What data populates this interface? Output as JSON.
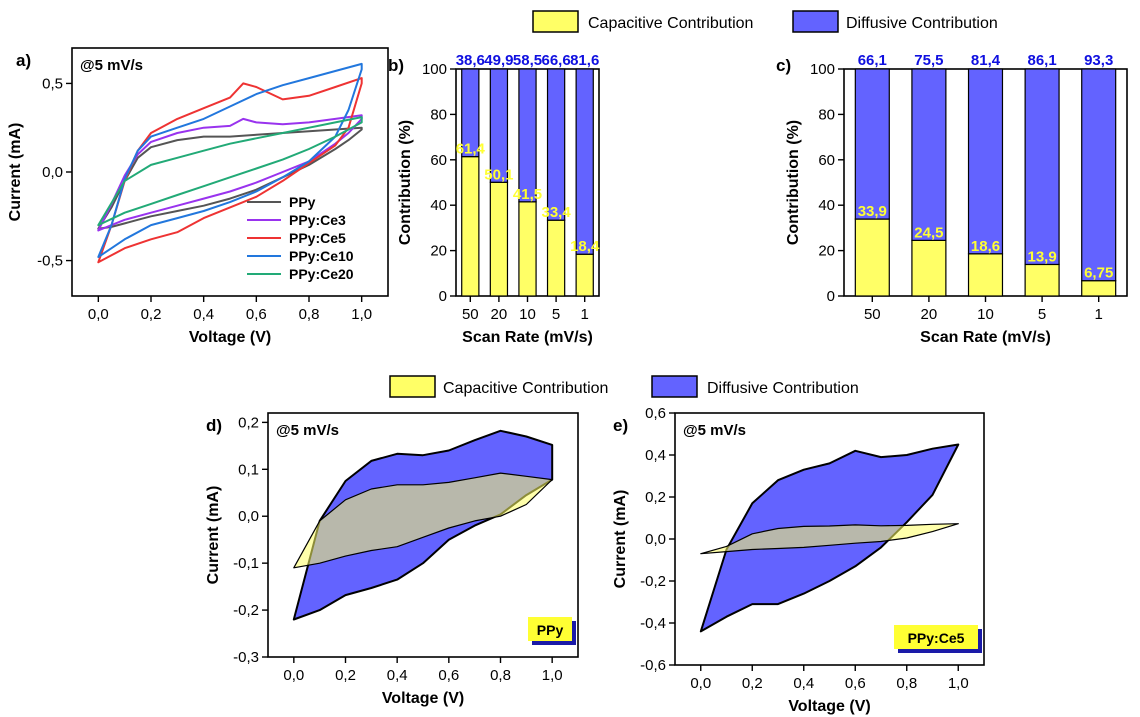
{
  "legend_entries": {
    "capacitive": "Capacitive Contribution",
    "diffusive": "Diffusive Contribution"
  },
  "colors": {
    "capacitive": "#ffff66",
    "diffusive": "#6363ff",
    "diffusive_label": "#1010e0",
    "capacitive_label": "#ffff33",
    "PPy": "#555555",
    "PPy:Ce3": "#9933ee",
    "PPy:Ce5": "#ee3333",
    "PPy:Ce10": "#2277dd",
    "PPy:Ce20": "#22aa77"
  },
  "chart_data": [
    {
      "type": "line",
      "panel": "a)",
      "annotation": "@5 mV/s",
      "xlabel": "Voltage (V)",
      "ylabel": "Current (mA)",
      "xlim": [
        -0.1,
        1.1
      ],
      "ylim": [
        -0.7,
        0.7
      ],
      "xticks": [
        "0,0",
        "0,2",
        "0,4",
        "0,6",
        "0,8",
        "1,0"
      ],
      "yticks": [
        "-0,5",
        "0,0",
        "0,5"
      ],
      "legend_position": "bottom-right",
      "series": [
        {
          "name": "PPy",
          "x": [
            0,
            0.05,
            0.1,
            0.15,
            0.2,
            0.3,
            0.4,
            0.5,
            0.6,
            0.7,
            0.8,
            0.9,
            1.0,
            1.0,
            0.95,
            0.9,
            0.8,
            0.7,
            0.6,
            0.5,
            0.4,
            0.3,
            0.2,
            0.15,
            0.1,
            0.05,
            0
          ],
          "y": [
            -0.32,
            -0.2,
            -0.05,
            0.08,
            0.14,
            0.18,
            0.2,
            0.2,
            0.21,
            0.22,
            0.23,
            0.24,
            0.25,
            0.24,
            0.18,
            0.13,
            0.04,
            -0.03,
            -0.1,
            -0.15,
            -0.19,
            -0.22,
            -0.25,
            -0.27,
            -0.29,
            -0.31,
            -0.32
          ]
        },
        {
          "name": "PPy:Ce3",
          "x": [
            0,
            0.05,
            0.1,
            0.15,
            0.2,
            0.3,
            0.4,
            0.5,
            0.55,
            0.6,
            0.7,
            0.8,
            0.9,
            1.0,
            1.0,
            0.95,
            0.9,
            0.8,
            0.7,
            0.6,
            0.5,
            0.4,
            0.3,
            0.2,
            0.1,
            0.05,
            0
          ],
          "y": [
            -0.33,
            -0.18,
            -0.02,
            0.1,
            0.17,
            0.22,
            0.25,
            0.26,
            0.3,
            0.28,
            0.27,
            0.28,
            0.3,
            0.32,
            0.3,
            0.22,
            0.16,
            0.06,
            0,
            -0.06,
            -0.11,
            -0.15,
            -0.19,
            -0.23,
            -0.27,
            -0.3,
            -0.33
          ]
        },
        {
          "name": "PPy:Ce5",
          "x": [
            0,
            0.05,
            0.1,
            0.15,
            0.2,
            0.3,
            0.4,
            0.5,
            0.55,
            0.6,
            0.7,
            0.8,
            0.9,
            1.0,
            1.0,
            0.95,
            0.9,
            0.8,
            0.7,
            0.6,
            0.5,
            0.4,
            0.3,
            0.2,
            0.1,
            0.05,
            0
          ],
          "y": [
            -0.51,
            -0.3,
            -0.05,
            0.12,
            0.22,
            0.3,
            0.36,
            0.42,
            0.5,
            0.48,
            0.41,
            0.43,
            0.48,
            0.53,
            0.5,
            0.25,
            0.15,
            0.05,
            -0.05,
            -0.14,
            -0.2,
            -0.26,
            -0.34,
            -0.38,
            -0.43,
            -0.47,
            -0.51
          ]
        },
        {
          "name": "PPy:Ce10",
          "x": [
            0,
            0.05,
            0.1,
            0.15,
            0.2,
            0.3,
            0.4,
            0.5,
            0.6,
            0.7,
            0.8,
            0.9,
            1.0,
            1.0,
            0.95,
            0.9,
            0.8,
            0.7,
            0.6,
            0.5,
            0.4,
            0.3,
            0.2,
            0.1,
            0.05,
            0
          ],
          "y": [
            -0.48,
            -0.3,
            -0.04,
            0.12,
            0.2,
            0.25,
            0.3,
            0.37,
            0.44,
            0.49,
            0.53,
            0.57,
            0.61,
            0.58,
            0.35,
            0.2,
            0.06,
            -0.03,
            -0.11,
            -0.17,
            -0.22,
            -0.26,
            -0.3,
            -0.38,
            -0.43,
            -0.48
          ]
        },
        {
          "name": "PPy:Ce20",
          "x": [
            0,
            0.1,
            0.2,
            0.3,
            0.4,
            0.5,
            0.6,
            0.7,
            0.8,
            0.9,
            1.0,
            1.0,
            0.9,
            0.8,
            0.7,
            0.6,
            0.5,
            0.4,
            0.3,
            0.2,
            0.1,
            0
          ],
          "y": [
            -0.3,
            -0.05,
            0.04,
            0.08,
            0.12,
            0.16,
            0.19,
            0.22,
            0.25,
            0.28,
            0.31,
            0.28,
            0.2,
            0.13,
            0.07,
            0.02,
            -0.03,
            -0.08,
            -0.13,
            -0.18,
            -0.23,
            -0.3
          ]
        }
      ]
    },
    {
      "type": "bar",
      "panel": "b)",
      "xlabel": "Scan Rate (mV/s)",
      "ylabel": "Contribution (%)",
      "ylim": [
        0,
        100
      ],
      "yticks": [
        "0",
        "20",
        "40",
        "60",
        "80",
        "100"
      ],
      "categories": [
        "50",
        "20",
        "10",
        "5",
        "1"
      ],
      "series": [
        {
          "name": "Capacitive Contribution",
          "values": [
            61.4,
            50.1,
            41.5,
            33.4,
            18.4
          ],
          "labels": [
            "61,4",
            "50,1",
            "41,5",
            "33,4",
            "18,4"
          ]
        },
        {
          "name": "Diffusive Contribution",
          "values": [
            38.6,
            49.9,
            58.5,
            66.6,
            81.6
          ],
          "labels": [
            "38,6",
            "49,9",
            "58,5",
            "66,6",
            "81,6"
          ]
        }
      ]
    },
    {
      "type": "bar",
      "panel": "c)",
      "xlabel": "Scan Rate (mV/s)",
      "ylabel": "Contribution (%)",
      "ylim": [
        0,
        100
      ],
      "yticks": [
        "0",
        "20",
        "40",
        "60",
        "80",
        "100"
      ],
      "categories": [
        "50",
        "20",
        "10",
        "5",
        "1"
      ],
      "series": [
        {
          "name": "Capacitive Contribution",
          "values": [
            33.9,
            24.5,
            18.6,
            13.9,
            6.75
          ],
          "labels": [
            "33,9",
            "24,5",
            "18,6",
            "13,9",
            "6,75"
          ]
        },
        {
          "name": "Diffusive Contribution",
          "values": [
            66.1,
            75.5,
            81.4,
            86.1,
            93.3
          ],
          "labels": [
            "66,1",
            "75,5",
            "81,4",
            "86,1",
            "93,3"
          ]
        }
      ]
    },
    {
      "type": "area",
      "panel": "d)",
      "annotation": "@5 mV/s",
      "sample": "PPy",
      "xlabel": "Voltage (V)",
      "ylabel": "Current (mA)",
      "xlim": [
        -0.1,
        1.1
      ],
      "ylim": [
        -0.3,
        0.22
      ],
      "xticks": [
        "0,0",
        "0,2",
        "0,4",
        "0,6",
        "0,8",
        "1,0"
      ],
      "yticks": [
        "-0,3",
        "-0,2",
        "-0,1",
        "0,0",
        "0,1",
        "0,2"
      ],
      "series": [
        {
          "name": "Diffusive Contribution",
          "x": [
            0,
            0.1,
            0.2,
            0.3,
            0.4,
            0.5,
            0.6,
            0.7,
            0.8,
            0.9,
            1.0,
            1.0,
            0.9,
            0.8,
            0.7,
            0.6,
            0.5,
            0.4,
            0.3,
            0.2,
            0.1,
            0
          ],
          "y": [
            -0.22,
            -0.01,
            0.075,
            0.118,
            0.133,
            0.13,
            0.14,
            0.162,
            0.182,
            0.17,
            0.152,
            0.078,
            0.045,
            0.004,
            -0.02,
            -0.05,
            -0.1,
            -0.135,
            -0.153,
            -0.168,
            -0.2,
            -0.22
          ]
        },
        {
          "name": "Capacitive Contribution",
          "x": [
            0,
            0.1,
            0.2,
            0.3,
            0.4,
            0.5,
            0.6,
            0.7,
            0.8,
            0.9,
            1.0,
            1.0,
            0.9,
            0.8,
            0.7,
            0.6,
            0.5,
            0.4,
            0.3,
            0.2,
            0.1,
            0
          ],
          "y": [
            -0.11,
            -0.01,
            0.035,
            0.058,
            0.067,
            0.067,
            0.072,
            0.082,
            0.092,
            0.085,
            0.078,
            0.078,
            0.025,
            0,
            -0.01,
            -0.025,
            -0.045,
            -0.065,
            -0.073,
            -0.085,
            -0.1,
            -0.11
          ]
        }
      ]
    },
    {
      "type": "area",
      "panel": "e)",
      "annotation": "@5 mV/s",
      "sample": "PPy:Ce5",
      "xlabel": "Voltage (V)",
      "ylabel": "Current (mA)",
      "xlim": [
        -0.1,
        1.1
      ],
      "ylim": [
        -0.6,
        0.6
      ],
      "xticks": [
        "0,0",
        "0,2",
        "0,4",
        "0,6",
        "0,8",
        "1,0"
      ],
      "yticks": [
        "-0,6",
        "-0,4",
        "-0,2",
        "0,0",
        "0,2",
        "0,4",
        "0,6"
      ],
      "series": [
        {
          "name": "Diffusive Contribution",
          "x": [
            0,
            0.1,
            0.2,
            0.3,
            0.4,
            0.5,
            0.6,
            0.7,
            0.8,
            0.9,
            1.0,
            1.0,
            0.9,
            0.8,
            0.7,
            0.6,
            0.5,
            0.4,
            0.3,
            0.2,
            0.1,
            0
          ],
          "y": [
            -0.44,
            -0.05,
            0.17,
            0.28,
            0.33,
            0.36,
            0.42,
            0.39,
            0.4,
            0.43,
            0.45,
            0.45,
            0.21,
            0.08,
            -0.04,
            -0.13,
            -0.2,
            -0.26,
            -0.31,
            -0.31,
            -0.37,
            -0.44
          ]
        },
        {
          "name": "Capacitive Contribution",
          "x": [
            0,
            0.1,
            0.2,
            0.3,
            0.4,
            0.5,
            0.6,
            0.7,
            0.8,
            0.9,
            1.0,
            1.0,
            0.9,
            0.8,
            0.7,
            0.6,
            0.5,
            0.4,
            0.3,
            0.2,
            0.1,
            0
          ],
          "y": [
            -0.07,
            -0.035,
            0.025,
            0.05,
            0.06,
            0.062,
            0.067,
            0.063,
            0.065,
            0.07,
            0.073,
            0.073,
            0.035,
            0.005,
            -0.012,
            -0.02,
            -0.03,
            -0.04,
            -0.045,
            -0.05,
            -0.06,
            -0.07
          ]
        }
      ]
    }
  ]
}
